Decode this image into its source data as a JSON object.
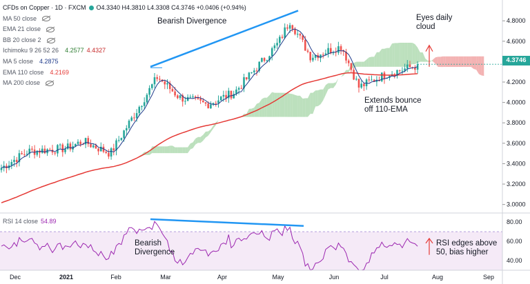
{
  "legend": {
    "symbol": "CFDs on Copper · 1D · FXCM",
    "ohlc": "O4.3340 H4.3810 L4.3308 C4.3746 +0.0406 (+0.94%)",
    "ma50": "MA 50 close",
    "ema21": "EMA 21 close",
    "bb20": "BB 20 close 2",
    "ichimoku": "Ichimoku 9 26 52 26",
    "ichimoku_v1": "4.2577",
    "ichimoku_v2": "4.4327",
    "ma5": "MA 5 close",
    "ma5_v": "4.2875",
    "ema110": "EMA 110 close",
    "ema110_v": "4.2169",
    "ma200": "MA 200 close"
  },
  "rsi_label": {
    "name": "RSI 14 close",
    "value": "54.89"
  },
  "price_tag": "4.3746",
  "annotations": {
    "bearish_top": "Bearish Divergence",
    "eyes_cloud": "Eyes daily\ncloud",
    "bounce": "Extends bounce\noff 110-EMA",
    "bearish_rsi": "Bearish\nDivergence",
    "rsi_edges": "RSI edges above\n50, bias higher"
  },
  "colors": {
    "up": "#26a69a",
    "down": "#ef5350",
    "ema110": "#e53935",
    "ma5": "#1e3a8a",
    "cloud_green": "#a5d6a7",
    "cloud_red": "#ef9a9a",
    "rsi": "#9c27b0",
    "trendline": "#2196f3"
  },
  "chart_data": [
    {
      "type": "candlestick",
      "title": "CFDs on Copper · 1D · FXCM",
      "x_ticks": [
        "Dec",
        "2021",
        "Feb",
        "Mar",
        "Apr",
        "May",
        "Jun",
        "Jul",
        "Aug",
        "Sep"
      ],
      "y_ticks": [
        "3.0000",
        "3.2000",
        "3.4000",
        "3.6000",
        "3.8000",
        "4.0000",
        "4.2000",
        "4.4000",
        "4.6000",
        "4.8000"
      ],
      "ylim": [
        2.93,
        4.95
      ],
      "last_price": 4.3746,
      "key_closes": [
        {
          "date": "Dec",
          "value": 3.35
        },
        {
          "date": "Dec end",
          "value": 3.52
        },
        {
          "date": "2021",
          "value": 3.55
        },
        {
          "date": "mid Jan",
          "value": 3.62
        },
        {
          "date": "early Feb",
          "value": 3.5
        },
        {
          "date": "late Feb",
          "value": 4.25
        },
        {
          "date": "Mar",
          "value": 4.05
        },
        {
          "date": "late Mar",
          "value": 3.98
        },
        {
          "date": "Apr",
          "value": 4.1
        },
        {
          "date": "early May",
          "value": 4.58
        },
        {
          "date": "mid May",
          "value": 4.8
        },
        {
          "date": "late May",
          "value": 4.45
        },
        {
          "date": "Jun",
          "value": 4.55
        },
        {
          "date": "mid Jun",
          "value": 4.15
        },
        {
          "date": "Jul",
          "value": 4.28
        },
        {
          "date": "late Jul",
          "value": 4.3746
        }
      ],
      "series": [
        {
          "name": "EMA 110 close",
          "last": 4.2169
        },
        {
          "name": "MA 5 close",
          "last": 4.2875
        },
        {
          "name": "Ichimoku 9 26 52 26",
          "values": [
            4.2577,
            4.4327
          ]
        }
      ]
    },
    {
      "type": "line",
      "title": "RSI 14 close",
      "y_ticks": [
        "40.00",
        "60.00",
        "80.00"
      ],
      "ylim": [
        30,
        88
      ],
      "band": [
        30,
        70
      ],
      "last": 54.89
    }
  ]
}
